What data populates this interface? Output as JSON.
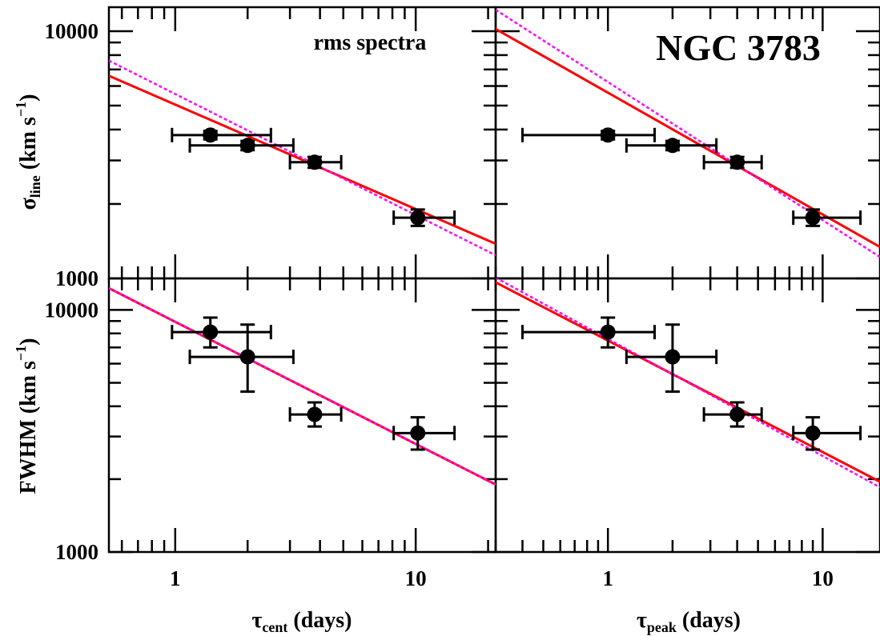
{
  "chart_data": {
    "type": "scatter",
    "title": "NGC 3783",
    "subtitle": "rms spectra",
    "x_scale": "log",
    "y_scale": "log",
    "xlim_left": [
      0.53,
      21.5
    ],
    "xlim_right": [
      0.3,
      18.5
    ],
    "ylim_top": [
      1000,
      12500
    ],
    "ylim_bottom": [
      1000,
      13500
    ],
    "x_ticks": [
      1,
      10
    ],
    "y_ticks": [
      1000,
      10000
    ],
    "xlabel_left": {
      "sym": "τ",
      "sub": "cent",
      "rest": " (days)"
    },
    "xlabel_right": {
      "sym": "τ",
      "sub": "peak",
      "rest": " (days)"
    },
    "ylabel_top": {
      "sym": "σ",
      "sub": "line",
      "rest": " (km s",
      "sup": "−1",
      "end": ")"
    },
    "ylabel_bottom": {
      "text": "FWHM (km s",
      "sup": "−1",
      "end": ")"
    },
    "panels": [
      {
        "row": "top",
        "col": "left",
        "points": [
          {
            "x": 1.4,
            "xerr": [
              0.97,
              2.5
            ],
            "y": 3800,
            "yerr": [
              3650,
              3950
            ]
          },
          {
            "x": 2.0,
            "xerr": [
              1.15,
              3.1
            ],
            "y": 3450,
            "yerr": [
              3300,
              3600
            ]
          },
          {
            "x": 3.8,
            "xerr": [
              3.0,
              4.9
            ],
            "y": 2950,
            "yerr": [
              2800,
              3100
            ]
          },
          {
            "x": 10.2,
            "xerr": [
              8.1,
              14.5
            ],
            "y": 1760,
            "yerr": [
              1630,
              1900
            ]
          }
        ],
        "fits": [
          {
            "color": "#ff0000",
            "style": "solid",
            "x": [
              0.53,
              21.5
            ],
            "y": [
              6600,
              1380
            ]
          },
          {
            "color": "#ff00ff",
            "style": "dotted",
            "x": [
              0.53,
              21.5
            ],
            "y": [
              7600,
              1240
            ]
          }
        ]
      },
      {
        "row": "top",
        "col": "right",
        "points": [
          {
            "x": 1.0,
            "xerr": [
              0.4,
              1.65
            ],
            "y": 3800,
            "yerr": [
              3650,
              3950
            ]
          },
          {
            "x": 2.0,
            "xerr": [
              1.22,
              3.2
            ],
            "y": 3450,
            "yerr": [
              3300,
              3600
            ]
          },
          {
            "x": 4.0,
            "xerr": [
              2.8,
              5.2
            ],
            "y": 2950,
            "yerr": [
              2800,
              3100
            ]
          },
          {
            "x": 9.0,
            "xerr": [
              7.3,
              15.0
            ],
            "y": 1760,
            "yerr": [
              1630,
              1900
            ]
          }
        ],
        "fits": [
          {
            "color": "#ff0000",
            "style": "solid",
            "x": [
              0.3,
              18.5
            ],
            "y": [
              10200,
              1340
            ]
          },
          {
            "color": "#ff00ff",
            "style": "dotted",
            "x": [
              0.3,
              18.5
            ],
            "y": [
              12200,
              1220
            ]
          }
        ]
      },
      {
        "row": "bottom",
        "col": "left",
        "points": [
          {
            "x": 1.4,
            "xerr": [
              0.97,
              2.5
            ],
            "y": 8100,
            "yerr": [
              7000,
              9300
            ]
          },
          {
            "x": 2.0,
            "xerr": [
              1.15,
              3.1
            ],
            "y": 6400,
            "yerr": [
              4600,
              8700
            ]
          },
          {
            "x": 3.8,
            "xerr": [
              3.0,
              4.9
            ],
            "y": 3700,
            "yerr": [
              3300,
              4150
            ]
          },
          {
            "x": 10.2,
            "xerr": [
              8.1,
              14.5
            ],
            "y": 3100,
            "yerr": [
              2650,
              3600
            ]
          }
        ],
        "fits": [
          {
            "color": "#ff0000",
            "style": "solid",
            "x": [
              0.53,
              21.5
            ],
            "y": [
              12300,
              1900
            ]
          },
          {
            "color": "#ff00ff",
            "style": "dotted",
            "x": [
              0.53,
              21.5
            ],
            "y": [
              12300,
              1900
            ]
          }
        ]
      },
      {
        "row": "bottom",
        "col": "right",
        "points": [
          {
            "x": 1.0,
            "xerr": [
              0.4,
              1.65
            ],
            "y": 8100,
            "yerr": [
              7000,
              9300
            ]
          },
          {
            "x": 2.0,
            "xerr": [
              1.22,
              3.2
            ],
            "y": 6400,
            "yerr": [
              4600,
              8700
            ]
          },
          {
            "x": 4.0,
            "xerr": [
              2.8,
              5.2
            ],
            "y": 3700,
            "yerr": [
              3300,
              4150
            ]
          },
          {
            "x": 9.0,
            "xerr": [
              7.3,
              15.0
            ],
            "y": 3100,
            "yerr": [
              2650,
              3600
            ]
          }
        ],
        "fits": [
          {
            "color": "#ff0000",
            "style": "solid",
            "x": [
              0.3,
              18.5
            ],
            "y": [
              13000,
              1950
            ]
          },
          {
            "color": "#ff00ff",
            "style": "dotted",
            "x": [
              0.3,
              18.5
            ],
            "y": [
              13600,
              1850
            ]
          }
        ]
      }
    ]
  }
}
